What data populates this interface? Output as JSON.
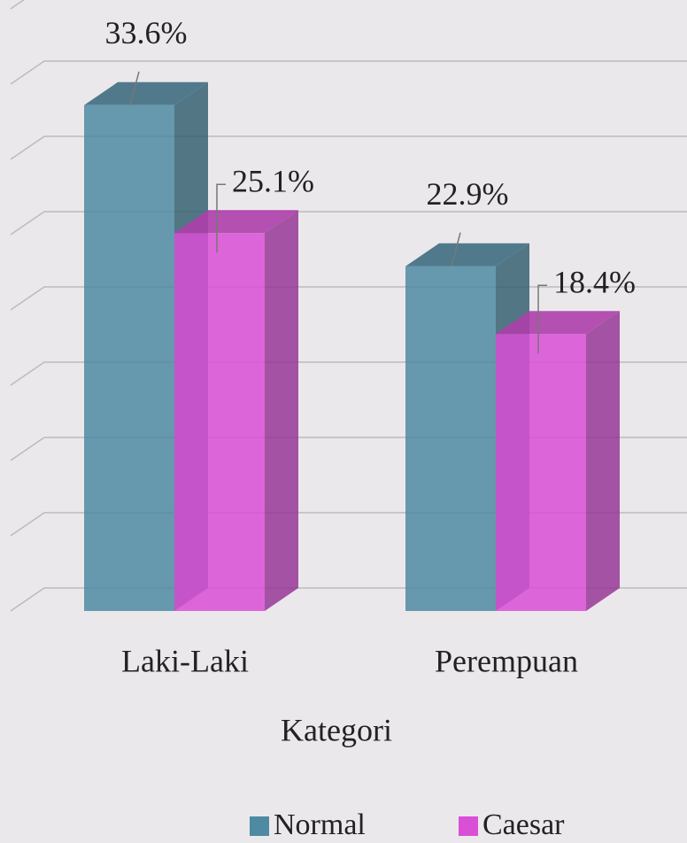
{
  "chart_data": {
    "type": "bar",
    "categories": [
      "Laki-Laki",
      "Perempuan"
    ],
    "x_label": "Kategori",
    "series": [
      {
        "name": "Normal",
        "color": "#4f8aa3",
        "values": [
          33.6,
          22.9
        ],
        "value_labels": [
          "33.6%",
          "22.9%"
        ]
      },
      {
        "name": "Caesar",
        "color": "#d94fd6",
        "values": [
          25.1,
          18.4
        ],
        "value_labels": [
          "25.1%",
          "18.4%"
        ]
      }
    ],
    "ylim": [
      0,
      40
    ],
    "yticks": [
      0,
      5,
      10,
      15,
      20,
      25,
      30,
      35,
      40
    ],
    "grid": true,
    "legend": "bottom"
  }
}
